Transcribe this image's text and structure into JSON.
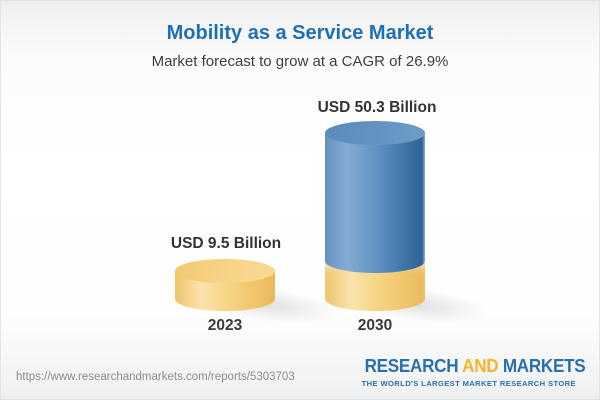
{
  "header": {
    "title": "Mobility as a Service Market",
    "subtitle": "Market forecast to grow at a CAGR of 26.9%"
  },
  "chart_data": {
    "type": "bar",
    "style": "3d-cylinder",
    "title": "Mobility as a Service Market",
    "subtitle": "Market forecast to grow at a CAGR of 26.9%",
    "cagr_percent": 26.9,
    "categories": [
      "2023",
      "2030"
    ],
    "values": [
      9.5,
      50.3
    ],
    "unit": "USD Billion",
    "value_labels": [
      "USD 9.5 Billion",
      "USD 50.3 Billion"
    ],
    "grid": false,
    "axes_shown": false,
    "legend": "none",
    "note": "2030 cylinder shows the 2023 value as a gold base segment at its bottom",
    "colors": {
      "bar_2023": "#f5d382",
      "bar_2030": "#4f84b5",
      "bar_2030_base_segment": "#f5d382",
      "label_text": "#333333"
    }
  },
  "footer": {
    "url": "https://www.researchandmarkets.com/reports/5303703",
    "logo": {
      "word1": "RESEARCH",
      "word2": "AND",
      "word3": "MARKETS",
      "tagline": "THE WORLD'S LARGEST MARKET RESEARCH STORE"
    }
  },
  "colors": {
    "title_blue": "#1e6fb4",
    "subtitle_gray": "#3e3e3e",
    "logo_blue": "#2a6fad",
    "logo_gold": "#f3b42c",
    "url_gray": "#8d8d8d",
    "background_top": "#efeff0",
    "background_middle": "#ffffff",
    "background_bottom": "#eff0f1"
  }
}
